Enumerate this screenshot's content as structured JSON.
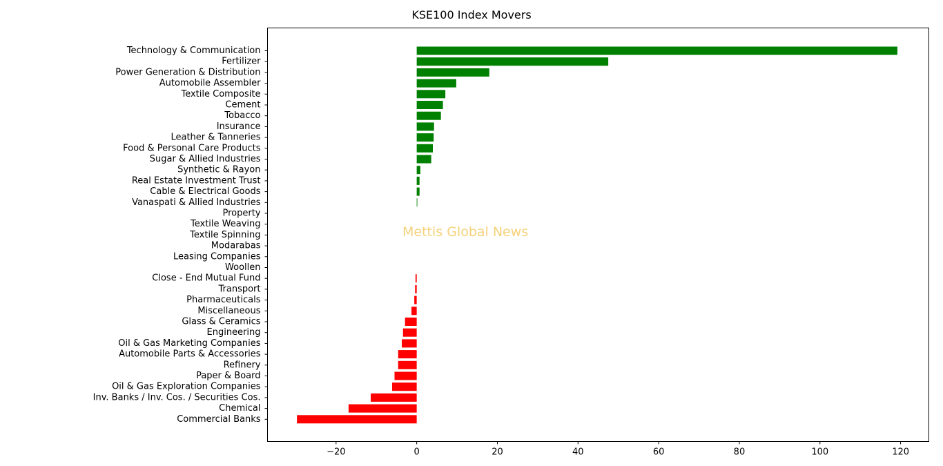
{
  "page": {
    "watermark": "Mettis Global News"
  },
  "chart_data": {
    "type": "bar",
    "orientation": "horizontal",
    "title": "KSE100 Index Movers",
    "xlabel": "",
    "ylabel": "",
    "xlim": [
      -37,
      127
    ],
    "xticks": [
      -20,
      0,
      20,
      40,
      60,
      80,
      100,
      120
    ],
    "xtick_labels": [
      "−20",
      "0",
      "20",
      "40",
      "60",
      "80",
      "100",
      "120"
    ],
    "grid": false,
    "colors": {
      "positive": "#008000",
      "negative": "#ff0000"
    },
    "categories": [
      "Technology & Communication",
      "Fertilizer",
      "Power Generation & Distribution",
      "Automobile Assembler",
      "Textile Composite",
      "Cement",
      "Tobacco",
      "Insurance",
      "Leather & Tanneries",
      "Food & Personal Care Products",
      "Sugar & Allied Industries",
      "Synthetic & Rayon",
      "Real Estate Investment Trust",
      "Cable & Electrical Goods",
      "Vanaspati & Allied Industries",
      "Property",
      "Textile Weaving",
      "Textile Spinning",
      "Modarabas",
      "Leasing Companies",
      "Woollen",
      "Close - End Mutual Fund",
      "Transport",
      "Pharmaceuticals",
      "Miscellaneous",
      "Glass & Ceramics",
      "Engineering",
      "Oil & Gas Marketing Companies",
      "Automobile Parts & Accessories",
      "Refinery",
      "Paper & Board",
      "Oil & Gas Exploration Companies",
      "Inv. Banks / Inv. Cos. / Securities Cos.",
      "Chemical",
      "Commercial Banks"
    ],
    "values": [
      119.2,
      47.5,
      18.0,
      9.8,
      7.1,
      6.5,
      6.0,
      4.3,
      4.2,
      4.0,
      3.6,
      0.9,
      0.7,
      0.7,
      0.15,
      0,
      0,
      0,
      0,
      0,
      0,
      -0.3,
      -0.4,
      -0.6,
      -1.3,
      -2.9,
      -3.4,
      -3.7,
      -4.6,
      -4.6,
      -5.5,
      -6.1,
      -11.4,
      -16.9,
      -29.7
    ]
  }
}
